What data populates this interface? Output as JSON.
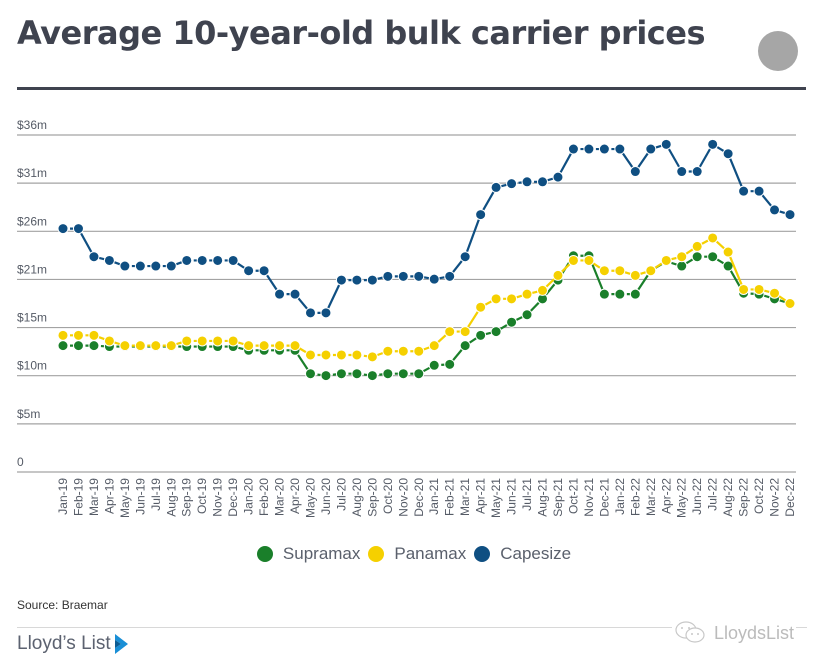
{
  "header": {
    "title": "Average 10-year-old bulk carrier prices"
  },
  "chart_data": {
    "type": "line",
    "title": "Average 10-year-old bulk carrier prices",
    "xlabel": "",
    "ylabel": "",
    "ylim": [
      0,
      36
    ],
    "y_ticks": [
      0,
      5.14,
      10.29,
      15.43,
      20.57,
      25.71,
      30.86,
      36
    ],
    "y_tick_labels": [
      "0",
      "$5m",
      "$10m",
      "$15m",
      "$21m",
      "$26m",
      "$31m",
      "$36m"
    ],
    "grid": true,
    "legend_position": "bottom-center",
    "x": [
      "Jan-19",
      "Feb-19",
      "Mar-19",
      "Apr-19",
      "May-19",
      "Jun-19",
      "Jul-19",
      "Aug-19",
      "Sep-19",
      "Oct-19",
      "Nov-19",
      "Dec-19",
      "Jan-20",
      "Feb-20",
      "Mar-20",
      "Apr-20",
      "May-20",
      "Jun-20",
      "Jul-20",
      "Aug-20",
      "Sep-20",
      "Oct-20",
      "Nov-20",
      "Dec-20",
      "Jan-21",
      "Feb-21",
      "Mar-21",
      "Apr-21",
      "May-21",
      "Jun-21",
      "Jul-21",
      "Aug-21",
      "Sep-21",
      "Oct-21",
      "Nov-21",
      "Dec-21",
      "Jan-22",
      "Feb-22",
      "Mar-22",
      "Apr-22",
      "May-22",
      "Jun-22",
      "Jul-22",
      "Aug-22",
      "Sep-22",
      "Oct-22",
      "Nov-22",
      "Dec-22"
    ],
    "series": [
      {
        "name": "Supramax",
        "color": "#1a7f2a",
        "values": [
          13.5,
          13.5,
          13.5,
          13.4,
          13.4,
          13.4,
          13.4,
          13.4,
          13.4,
          13.4,
          13.4,
          13.4,
          13.0,
          13.0,
          13.0,
          13.0,
          10.5,
          10.3,
          10.5,
          10.5,
          10.3,
          10.5,
          10.5,
          10.5,
          11.4,
          11.5,
          13.5,
          14.6,
          15.0,
          16.0,
          16.8,
          18.5,
          20.5,
          23.1,
          23.1,
          19.0,
          19.0,
          19.0,
          21.5,
          22.5,
          22.0,
          23.0,
          23.0,
          22.0,
          19.1,
          19.0,
          18.5,
          18.0
        ]
      },
      {
        "name": "Panamax",
        "color": "#f5d000",
        "values": [
          14.6,
          14.6,
          14.6,
          14.0,
          13.5,
          13.5,
          13.5,
          13.5,
          14.0,
          14.0,
          14.0,
          14.0,
          13.5,
          13.5,
          13.5,
          13.5,
          12.5,
          12.5,
          12.5,
          12.5,
          12.3,
          12.9,
          12.9,
          12.9,
          13.5,
          15.0,
          15.0,
          17.6,
          18.5,
          18.5,
          19.0,
          19.4,
          21.0,
          22.6,
          22.6,
          21.5,
          21.5,
          21.0,
          21.5,
          22.6,
          23.0,
          24.1,
          25.0,
          23.5,
          19.5,
          19.5,
          19.1,
          18.0
        ]
      },
      {
        "name": "Capesize",
        "color": "#0f4f82",
        "values": [
          26.0,
          26.0,
          23.0,
          22.6,
          22.0,
          22.0,
          22.0,
          22.0,
          22.6,
          22.6,
          22.6,
          22.6,
          21.5,
          21.5,
          19.0,
          19.0,
          17.0,
          17.0,
          20.5,
          20.5,
          20.5,
          20.9,
          20.9,
          20.9,
          20.6,
          20.9,
          23.0,
          27.5,
          30.4,
          30.8,
          31.0,
          31.0,
          31.5,
          34.5,
          34.5,
          34.5,
          34.5,
          32.1,
          34.5,
          35.0,
          32.1,
          32.1,
          35.0,
          34.0,
          30.0,
          30.0,
          28.0,
          27.5
        ]
      }
    ]
  },
  "legend": {
    "items": [
      {
        "label": "Supramax",
        "color": "#1a7f2a"
      },
      {
        "label": "Panamax",
        "color": "#f5d000"
      },
      {
        "label": "Capesize",
        "color": "#0f4f82"
      }
    ]
  },
  "footer": {
    "source": "Source: Braemar",
    "brand": "Lloyd’s List",
    "brand_color": "#1a8fd6",
    "watermark": "LloydsList"
  }
}
